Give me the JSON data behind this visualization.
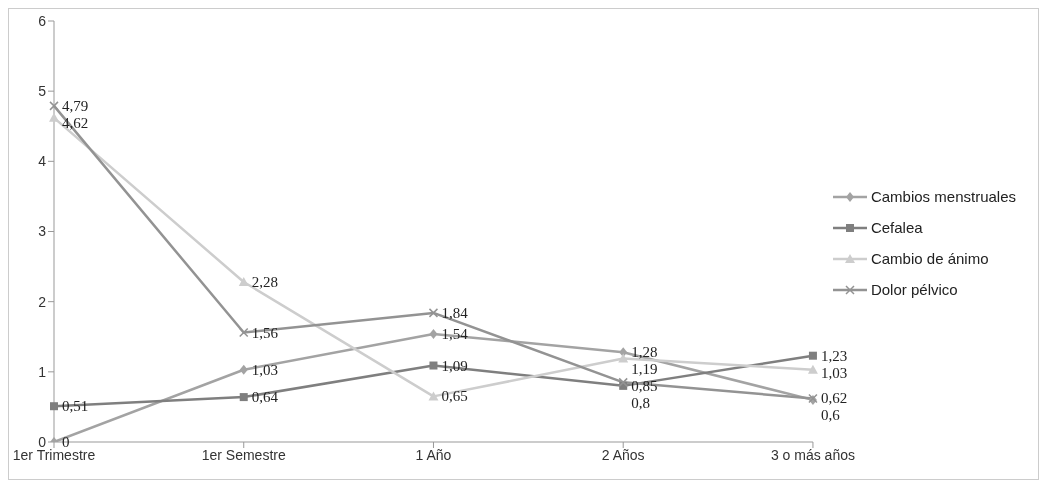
{
  "chart_data": {
    "type": "line",
    "categories": [
      "1er Trimestre",
      "1er Semestre",
      "1 Año",
      "2 Años",
      "3 o más años"
    ],
    "ylim": [
      0,
      6
    ],
    "yticks": [
      0,
      1,
      2,
      3,
      4,
      5,
      6
    ],
    "grid": false,
    "legend": "right",
    "line_style": "solid",
    "series": [
      {
        "name": "Cambios menstruales",
        "color": "#a3a3a3",
        "marker": "diamond",
        "values": [
          0,
          1.03,
          1.54,
          1.28,
          0.6
        ],
        "value_labels": [
          "0",
          "1,03",
          "1,54",
          "1,28",
          "0,6"
        ]
      },
      {
        "name": "Cefalea",
        "color": "#7f7f7f",
        "marker": "square",
        "values": [
          0.51,
          0.64,
          1.09,
          0.8,
          1.23
        ],
        "value_labels": [
          "0,51",
          "0,64",
          "1,09",
          "0,8",
          "1,23"
        ]
      },
      {
        "name": "Cambio de ánimo",
        "color": "#cdcdcd",
        "marker": "triangle",
        "values": [
          4.62,
          2.28,
          0.65,
          1.19,
          1.03
        ],
        "value_labels": [
          "4,62",
          "2,28",
          "0,65",
          "1,19",
          "1,03"
        ]
      },
      {
        "name": "Dolor pélvico",
        "color": "#939393",
        "marker": "cross",
        "values": [
          4.79,
          1.56,
          1.84,
          0.85,
          0.62
        ],
        "value_labels": [
          "4,79",
          "1,56",
          "1,84",
          "0,85",
          "0,62"
        ]
      }
    ]
  }
}
